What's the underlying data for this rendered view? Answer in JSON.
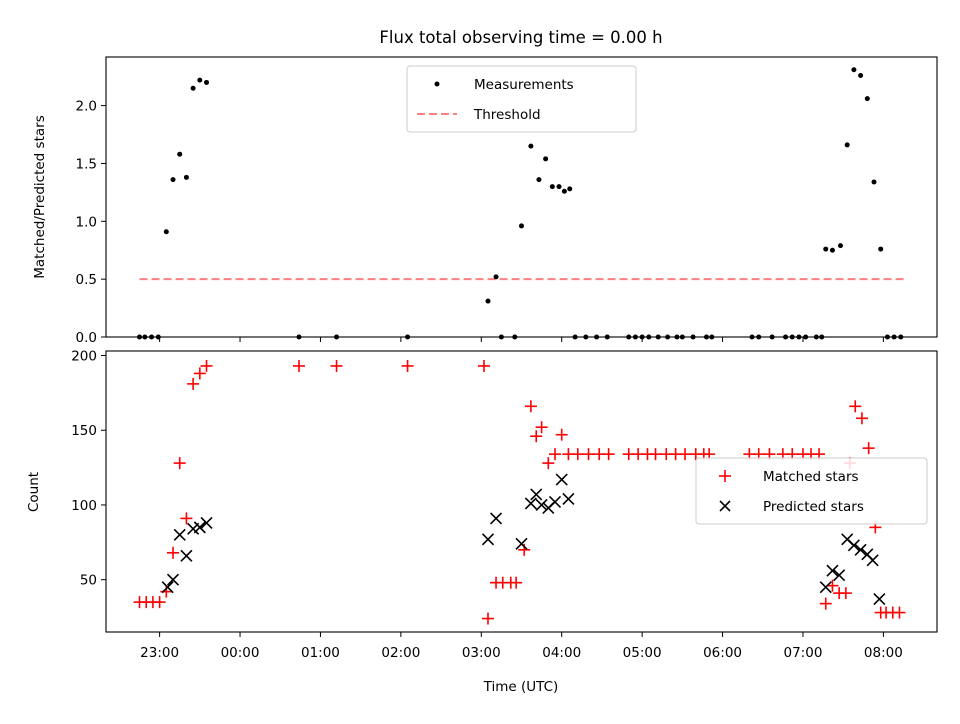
{
  "chart_data": [
    {
      "type": "scatter",
      "title": "Flux total observing time = 0.00 h",
      "xlabel": "",
      "ylabel": "Matched/Predicted stars",
      "xlim": [
        "22:20",
        "08:40"
      ],
      "ylim": [
        0,
        2.42
      ],
      "yticks": [
        0.0,
        0.5,
        1.0,
        1.5,
        2.0
      ],
      "ytick_labels": [
        "0.0",
        "0.5",
        "1.0",
        "1.5",
        "2.0"
      ],
      "legend": {
        "placement": "top-center",
        "entries": [
          "Measurements",
          "Threshold"
        ]
      },
      "threshold": {
        "name": "Threshold",
        "value": 0.5,
        "x_start": "22:45",
        "x_end": "08:15",
        "color": "#ff8080",
        "style": "dashed"
      },
      "series": [
        {
          "name": "Measurements",
          "color": "#000000",
          "marker": "dot",
          "points": [
            [
              "22:45",
              0.0
            ],
            [
              "22:49",
              0.0
            ],
            [
              "22:54",
              0.0
            ],
            [
              "22:59",
              0.0
            ],
            [
              "23:05",
              0.91
            ],
            [
              "23:10",
              1.36
            ],
            [
              "23:15",
              1.58
            ],
            [
              "23:20",
              1.38
            ],
            [
              "23:25",
              2.15
            ],
            [
              "23:30",
              2.22
            ],
            [
              "23:35",
              2.2
            ],
            [
              "00:44",
              0.0
            ],
            [
              "01:12",
              0.0
            ],
            [
              "02:05",
              0.0
            ],
            [
              "03:05",
              0.31
            ],
            [
              "03:11",
              0.52
            ],
            [
              "03:15",
              0.0
            ],
            [
              "03:25",
              0.0
            ],
            [
              "03:30",
              0.96
            ],
            [
              "03:37",
              1.65
            ],
            [
              "03:43",
              1.36
            ],
            [
              "03:48",
              1.54
            ],
            [
              "03:53",
              1.3
            ],
            [
              "03:58",
              1.3
            ],
            [
              "04:02",
              1.26
            ],
            [
              "04:06",
              1.28
            ],
            [
              "04:10",
              0.0
            ],
            [
              "04:18",
              0.0
            ],
            [
              "04:26",
              0.0
            ],
            [
              "04:34",
              0.0
            ],
            [
              "04:50",
              0.0
            ],
            [
              "04:55",
              0.0
            ],
            [
              "05:00",
              0.0
            ],
            [
              "05:05",
              0.0
            ],
            [
              "05:12",
              0.0
            ],
            [
              "05:19",
              0.0
            ],
            [
              "05:26",
              0.0
            ],
            [
              "05:30",
              0.0
            ],
            [
              "05:38",
              0.0
            ],
            [
              "05:48",
              0.0
            ],
            [
              "05:52",
              0.0
            ],
            [
              "06:22",
              0.0
            ],
            [
              "06:27",
              0.0
            ],
            [
              "06:37",
              0.0
            ],
            [
              "06:47",
              0.0
            ],
            [
              "06:52",
              0.0
            ],
            [
              "06:57",
              0.0
            ],
            [
              "07:02",
              0.0
            ],
            [
              "07:10",
              0.0
            ],
            [
              "07:14",
              0.0
            ],
            [
              "07:17",
              0.76
            ],
            [
              "07:22",
              0.75
            ],
            [
              "07:28",
              0.79
            ],
            [
              "07:33",
              1.66
            ],
            [
              "07:38",
              2.31
            ],
            [
              "07:43",
              2.26
            ],
            [
              "07:48",
              2.06
            ],
            [
              "07:53",
              1.34
            ],
            [
              "07:58",
              0.76
            ],
            [
              "08:03",
              0.0
            ],
            [
              "08:08",
              0.0
            ],
            [
              "08:13",
              0.0
            ]
          ]
        }
      ]
    },
    {
      "type": "scatter",
      "title": "",
      "xlabel": "Time (UTC)",
      "ylabel": "Count",
      "xlim": [
        "22:20",
        "08:40"
      ],
      "ylim": [
        15,
        203
      ],
      "yticks": [
        50,
        100,
        150,
        200
      ],
      "ytick_labels": [
        "50",
        "100",
        "150",
        "200"
      ],
      "xticks": [
        "23:00",
        "00:00",
        "01:00",
        "02:00",
        "03:00",
        "04:00",
        "05:00",
        "06:00",
        "07:00",
        "08:00"
      ],
      "xtick_labels": [
        "23:00",
        "00:00",
        "01:00",
        "02:00",
        "03:00",
        "04:00",
        "05:00",
        "06:00",
        "07:00",
        "08:00"
      ],
      "legend": {
        "placement": "center-right",
        "entries": [
          "Matched stars",
          "Predicted stars"
        ]
      },
      "series": [
        {
          "name": "Matched stars",
          "color": "#ff0000",
          "marker": "plus",
          "points": [
            [
              "22:45",
              35
            ],
            [
              "22:50",
              35
            ],
            [
              "22:55",
              35
            ],
            [
              "23:00",
              35
            ],
            [
              "23:05",
              42
            ],
            [
              "23:10",
              68
            ],
            [
              "23:15",
              128
            ],
            [
              "23:20",
              91
            ],
            [
              "23:25",
              181
            ],
            [
              "23:30",
              188
            ],
            [
              "23:35",
              193
            ],
            [
              "00:44",
              193
            ],
            [
              "01:12",
              193
            ],
            [
              "02:05",
              193
            ],
            [
              "03:02",
              193
            ],
            [
              "03:05",
              24
            ],
            [
              "03:11",
              48
            ],
            [
              "03:16",
              48
            ],
            [
              "03:22",
              48
            ],
            [
              "03:26",
              48
            ],
            [
              "03:32",
              70
            ],
            [
              "03:37",
              166
            ],
            [
              "03:41",
              146
            ],
            [
              "03:45",
              152
            ],
            [
              "03:50",
              128
            ],
            [
              "03:55",
              134
            ],
            [
              "04:00",
              147
            ],
            [
              "04:05",
              134
            ],
            [
              "04:12",
              134
            ],
            [
              "04:20",
              134
            ],
            [
              "04:28",
              134
            ],
            [
              "04:35",
              134
            ],
            [
              "04:50",
              134
            ],
            [
              "04:57",
              134
            ],
            [
              "05:04",
              134
            ],
            [
              "05:10",
              134
            ],
            [
              "05:18",
              134
            ],
            [
              "05:25",
              134
            ],
            [
              "05:32",
              134
            ],
            [
              "05:40",
              134
            ],
            [
              "05:46",
              134
            ],
            [
              "05:50",
              134
            ],
            [
              "06:20",
              134
            ],
            [
              "06:27",
              134
            ],
            [
              "06:35",
              134
            ],
            [
              "06:45",
              134
            ],
            [
              "06:52",
              134
            ],
            [
              "07:00",
              134
            ],
            [
              "07:06",
              134
            ],
            [
              "07:12",
              134
            ],
            [
              "07:17",
              34
            ],
            [
              "07:22",
              46
            ],
            [
              "07:27",
              41
            ],
            [
              "07:32",
              41
            ],
            [
              "07:35",
              128
            ],
            [
              "07:39",
              166
            ],
            [
              "07:44",
              158
            ],
            [
              "07:49",
              138
            ],
            [
              "07:54",
              85
            ],
            [
              "07:58",
              28
            ],
            [
              "08:02",
              28
            ],
            [
              "08:07",
              28
            ],
            [
              "08:12",
              28
            ]
          ]
        },
        {
          "name": "Predicted stars",
          "color": "#000000",
          "marker": "x",
          "points": [
            [
              "23:06",
              45
            ],
            [
              "23:10",
              50
            ],
            [
              "23:15",
              80
            ],
            [
              "23:20",
              66
            ],
            [
              "23:25",
              84
            ],
            [
              "23:30",
              85
            ],
            [
              "23:35",
              88
            ],
            [
              "03:05",
              77
            ],
            [
              "03:11",
              91
            ],
            [
              "03:30",
              74
            ],
            [
              "03:37",
              101
            ],
            [
              "03:41",
              107
            ],
            [
              "03:45",
              100
            ],
            [
              "03:50",
              98
            ],
            [
              "03:55",
              102
            ],
            [
              "04:00",
              117
            ],
            [
              "04:05",
              104
            ],
            [
              "07:17",
              45
            ],
            [
              "07:22",
              56
            ],
            [
              "07:27",
              53
            ],
            [
              "07:33",
              77
            ],
            [
              "07:38",
              73
            ],
            [
              "07:43",
              70
            ],
            [
              "07:48",
              67
            ],
            [
              "07:52",
              63
            ],
            [
              "07:57",
              37
            ]
          ]
        }
      ]
    }
  ]
}
